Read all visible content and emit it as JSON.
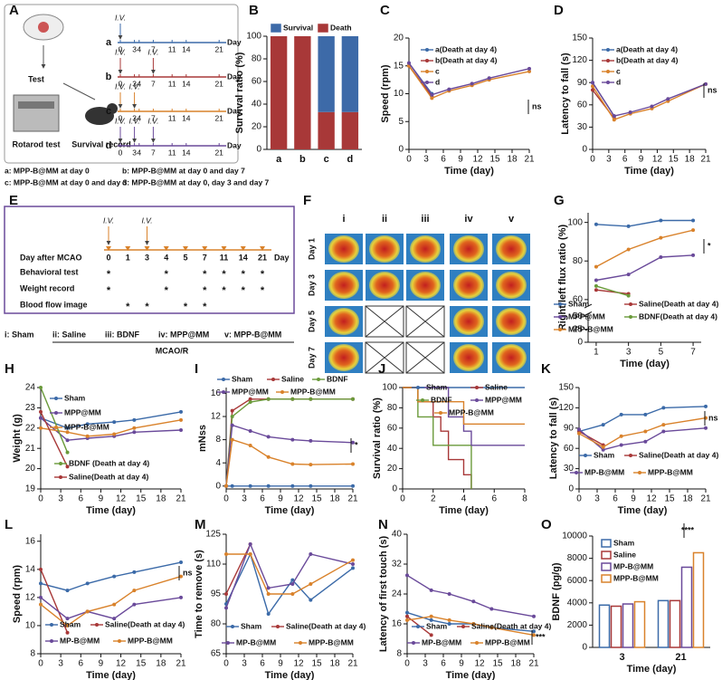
{
  "panel_a": {
    "label": "A",
    "test": "Test",
    "rotarod": "Rotarod test",
    "survival": "Survival record",
    "iv": "I.V.",
    "unit": "Day",
    "days": [
      0,
      3,
      4,
      7,
      11,
      14,
      21
    ],
    "groups": [
      {
        "letter": "a",
        "color": "#3b6aa8",
        "doses": [
          0
        ],
        "legend": "a: MPP-B@MM at day 0"
      },
      {
        "letter": "b",
        "color": "#a83838",
        "doses": [
          0,
          7
        ],
        "legend": "b: MPP-B@MM at day 0 and day 7"
      },
      {
        "letter": "c",
        "color": "#d9822b",
        "doses": [
          0,
          3
        ],
        "legend": "c: MPP-B@MM at day 0 and day 3"
      },
      {
        "letter": "d",
        "color": "#6a4a9a",
        "doses": [
          0,
          3,
          7
        ],
        "legend": "d: MPP-B@MM at day 0, day 3 and day 7"
      }
    ]
  },
  "panel_e": {
    "label": "E",
    "iv": "I.V.",
    "doses": [
      0,
      3
    ],
    "days": [
      0,
      1,
      3,
      4,
      5,
      7,
      11,
      14,
      21
    ],
    "unit": "Day",
    "row_title": "Day after MCAO",
    "mark": "*",
    "rows": [
      {
        "name": "Behavioral test",
        "days": [
          0,
          4,
          7,
          11,
          14,
          21
        ]
      },
      {
        "name": "Weight record",
        "days": [
          0,
          4,
          7,
          11,
          14,
          21
        ]
      },
      {
        "name": "Blood flow image",
        "days": [
          1,
          3,
          5,
          7
        ]
      }
    ],
    "groups": [
      "i: Sham",
      "ii: Saline",
      "iii: BDNF",
      "iv: MPP@MM",
      "v: MPP-B@MM"
    ],
    "model": "MCAO/R"
  },
  "panel_f": {
    "label": "F",
    "columns": [
      "i",
      "ii",
      "iii",
      "iv",
      "v"
    ],
    "rows": [
      "Day 1",
      "Day 3",
      "Day 5",
      "Day 7"
    ]
  },
  "chart_data": [
    {
      "panel": "B",
      "type": "stacked_bar",
      "categories": [
        "a",
        "b",
        "c",
        "d"
      ],
      "ylim": [
        0,
        100
      ],
      "yticks": [
        0,
        20,
        40,
        60,
        80,
        100
      ],
      "ylabel": "Survival ratio (%)",
      "series": [
        {
          "name": "Survival",
          "color": "#3d6aa8",
          "values": [
            0,
            0,
            67,
            67
          ]
        },
        {
          "name": "Death",
          "color": "#a83838",
          "values": [
            100,
            100,
            33,
            33
          ]
        }
      ]
    },
    {
      "panel": "C",
      "type": "line",
      "x": [
        0,
        4,
        7,
        11,
        14,
        21
      ],
      "xlim": [
        0,
        21
      ],
      "xticks": [
        0,
        3,
        6,
        9,
        12,
        15,
        18,
        21
      ],
      "ylim": [
        0,
        20
      ],
      "yticks": [
        0,
        5,
        10,
        15,
        20
      ],
      "xlabel": "Time (day)",
      "ylabel": "Speed (rpm)",
      "annotations": [
        "ns"
      ],
      "series": [
        {
          "name": "a(Death at day 4)",
          "color": "#3b6aa8",
          "values": [
            15.5,
            10,
            null,
            null,
            null,
            null
          ]
        },
        {
          "name": "b(Death at day 4)",
          "color": "#a83838",
          "values": [
            15,
            9.5,
            null,
            null,
            null,
            null
          ]
        },
        {
          "name": "c",
          "color": "#d9822b",
          "values": [
            15,
            9.2,
            10.5,
            11.5,
            12.5,
            14
          ]
        },
        {
          "name": "d",
          "color": "#6a4a9a",
          "values": [
            15.5,
            9.8,
            10.8,
            11.8,
            12.8,
            14.5
          ]
        }
      ]
    },
    {
      "panel": "D",
      "type": "line",
      "x": [
        0,
        4,
        7,
        11,
        14,
        21
      ],
      "xlim": [
        0,
        21
      ],
      "xticks": [
        0,
        3,
        6,
        9,
        12,
        15,
        18,
        21
      ],
      "ylim": [
        0,
        150
      ],
      "yticks": [
        0,
        30,
        60,
        90,
        120,
        150
      ],
      "xlabel": "Time (day)",
      "ylabel": "Latency to fall (s)",
      "annotations": [
        "ns"
      ],
      "series": [
        {
          "name": "a(Death at day 4)",
          "color": "#3b6aa8",
          "values": [
            90,
            45,
            null,
            null,
            null,
            null
          ]
        },
        {
          "name": "b(Death at day 4)",
          "color": "#a83838",
          "values": [
            80,
            42,
            null,
            null,
            null,
            null
          ]
        },
        {
          "name": "c",
          "color": "#d9822b",
          "values": [
            85,
            40,
            48,
            55,
            65,
            88
          ]
        },
        {
          "name": "d",
          "color": "#6a4a9a",
          "values": [
            90,
            45,
            50,
            58,
            68,
            88
          ]
        }
      ]
    },
    {
      "panel": "G",
      "type": "line",
      "x": [
        1,
        3,
        5,
        7
      ],
      "xlim": [
        0.5,
        7.5
      ],
      "xticks": [
        1,
        3,
        5,
        7
      ],
      "ylim": [
        0,
        105
      ],
      "ybreak": [
        50,
        58
      ],
      "yticks": [
        0,
        25,
        50,
        60,
        80,
        100
      ],
      "xlabel": "Time (day)",
      "ylabel": "Right/left flux ratio (%)",
      "annotations": [
        "*"
      ],
      "series": [
        {
          "name": "Sham",
          "color": "#3b6aa8",
          "values": [
            99,
            98,
            101,
            101
          ]
        },
        {
          "name": "Saline(Death at day 4)",
          "color": "#a83838",
          "values": [
            65,
            63,
            null,
            null
          ]
        },
        {
          "name": "MPP@MM",
          "color": "#6a4a9a",
          "values": [
            70,
            73,
            82,
            83
          ]
        },
        {
          "name": "BDNF(Death at day 4)",
          "color": "#6a9a3a",
          "values": [
            67,
            62,
            null,
            null
          ]
        },
        {
          "name": "MPP-B@MM",
          "color": "#d9822b",
          "values": [
            77,
            86,
            92,
            96
          ]
        }
      ]
    },
    {
      "panel": "H",
      "type": "line",
      "x": [
        0,
        4,
        7,
        11,
        14,
        21
      ],
      "xlim": [
        0,
        21
      ],
      "xticks": [
        0,
        3,
        6,
        9,
        12,
        15,
        18,
        21
      ],
      "ylim": [
        19,
        24
      ],
      "yticks": [
        19,
        20,
        21,
        22,
        23,
        24
      ],
      "xlabel": "Time (day)",
      "ylabel": "Weight (g)",
      "series": [
        {
          "name": "Sham",
          "color": "#3b6aa8",
          "values": [
            22.5,
            22.0,
            22.2,
            22.3,
            22.4,
            22.8
          ]
        },
        {
          "name": "MPP@MM",
          "color": "#6a4a9a",
          "values": [
            22.5,
            21.4,
            21.5,
            21.6,
            21.8,
            21.9
          ]
        },
        {
          "name": "MPP-B@MM",
          "color": "#d9822b",
          "values": [
            22,
            21.8,
            21.6,
            21.7,
            22,
            22.4
          ]
        },
        {
          "name": "BDNF (Death at day 4)",
          "color": "#6a9a3a",
          "values": [
            24,
            20.8,
            null,
            null,
            null,
            null
          ]
        },
        {
          "name": "Saline(Death at day 4)",
          "color": "#a83838",
          "values": [
            22.8,
            20.1,
            null,
            null,
            null,
            null
          ]
        }
      ]
    },
    {
      "panel": "I",
      "type": "line",
      "x": [
        0,
        1,
        4,
        7,
        11,
        14,
        21
      ],
      "xlim": [
        0,
        21
      ],
      "xticks": [
        0,
        3,
        6,
        9,
        12,
        15,
        18,
        21
      ],
      "ylim": [
        -0.5,
        17
      ],
      "yticks": [
        0,
        4,
        8,
        12,
        16
      ],
      "xlabel": "Time (day)",
      "ylabel": "mNss",
      "annotations": [
        "*"
      ],
      "series": [
        {
          "name": "Sham",
          "color": "#3b6aa8",
          "values": [
            0,
            0,
            0,
            0,
            0,
            0,
            0
          ]
        },
        {
          "name": "Saline",
          "color": "#a83838",
          "values": [
            0,
            13,
            15,
            15,
            15,
            15,
            15
          ]
        },
        {
          "name": "BDNF",
          "color": "#6a9a3a",
          "values": [
            0,
            12,
            14.5,
            15,
            15,
            15,
            15
          ]
        },
        {
          "name": "MPP@MM",
          "color": "#6a4a9a",
          "values": [
            0,
            10.5,
            9.5,
            8.5,
            8,
            7.8,
            7.5
          ]
        },
        {
          "name": "MPP-B@MM",
          "color": "#d9822b",
          "values": [
            0,
            8,
            7,
            5,
            3.8,
            3.7,
            3.8
          ]
        }
      ]
    },
    {
      "panel": "J",
      "type": "step",
      "xlim": [
        0,
        8
      ],
      "xticks": [
        0,
        2,
        4,
        6,
        8
      ],
      "ylim": [
        0,
        100
      ],
      "yticks": [
        0,
        20,
        40,
        60,
        80,
        100
      ],
      "xlabel": "Time (day)",
      "ylabel": "Survival ratio (%)",
      "series": [
        {
          "name": "Sham",
          "color": "#3b6aa8",
          "x": [
            0,
            8
          ],
          "values": [
            100,
            100
          ]
        },
        {
          "name": "Saline",
          "color": "#a83838",
          "x": [
            0,
            1,
            2,
            2.5,
            3,
            4,
            4.5
          ],
          "values": [
            100,
            86,
            71,
            57,
            29,
            14,
            0
          ]
        },
        {
          "name": "BDNF",
          "color": "#6a9a3a",
          "x": [
            0,
            1,
            2,
            4.5
          ],
          "values": [
            100,
            71,
            43,
            0
          ]
        },
        {
          "name": "MPP@MM",
          "color": "#6a4a9a",
          "x": [
            0,
            3,
            4,
            4.5,
            8
          ],
          "values": [
            100,
            71,
            57,
            43,
            43
          ]
        },
        {
          "name": "MPP-B@MM",
          "color": "#d9822b",
          "x": [
            0,
            1,
            4,
            8
          ],
          "values": [
            100,
            86,
            64,
            64
          ]
        }
      ]
    },
    {
      "panel": "K",
      "type": "line",
      "x": [
        0,
        4,
        7,
        11,
        14,
        21
      ],
      "xlim": [
        0,
        21
      ],
      "xticks": [
        0,
        3,
        6,
        9,
        12,
        15,
        18,
        21
      ],
      "ylim": [
        0,
        150
      ],
      "yticks": [
        0,
        30,
        60,
        90,
        120,
        150
      ],
      "xlabel": "Time (day)",
      "ylabel": "Latency to fall (s)",
      "annotations": [
        "ns"
      ],
      "series": [
        {
          "name": "Sham",
          "color": "#3b6aa8",
          "values": [
            85,
            95,
            110,
            110,
            120,
            122
          ]
        },
        {
          "name": "Saline(Death at day 4)",
          "color": "#a83838",
          "values": [
            85,
            65,
            null,
            null,
            null,
            null
          ]
        },
        {
          "name": "MP-B@MM",
          "color": "#6a4a9a",
          "values": [
            88,
            58,
            65,
            70,
            85,
            90
          ]
        },
        {
          "name": "MPP-B@MM",
          "color": "#d9822b",
          "values": [
            82,
            62,
            78,
            85,
            95,
            105
          ]
        }
      ]
    },
    {
      "panel": "L",
      "type": "line",
      "x": [
        0,
        4,
        7,
        11,
        14,
        21
      ],
      "xlim": [
        0,
        21
      ],
      "xticks": [
        0,
        3,
        6,
        9,
        12,
        15,
        18,
        21
      ],
      "ylim": [
        8,
        16.5
      ],
      "yticks": [
        8,
        10,
        12,
        14,
        16
      ],
      "xlabel": "Time (day)",
      "ylabel": "Speed (rpm)",
      "annotations": [
        "ns"
      ],
      "series": [
        {
          "name": "Sham",
          "color": "#3b6aa8",
          "values": [
            13,
            12.5,
            13,
            13.5,
            13.8,
            14.5
          ]
        },
        {
          "name": "Saline(Death at day 4)",
          "color": "#a83838",
          "values": [
            14,
            9.5,
            null,
            null,
            null,
            null
          ]
        },
        {
          "name": "MP-B@MM",
          "color": "#6a4a9a",
          "values": [
            12,
            10.5,
            11,
            10.5,
            11.5,
            12
          ]
        },
        {
          "name": "MPP-B@MM",
          "color": "#d9822b",
          "values": [
            11.5,
            10,
            11,
            11.5,
            12.5,
            13.5
          ]
        }
      ]
    },
    {
      "panel": "M",
      "type": "line",
      "x": [
        0,
        4,
        7,
        11,
        14,
        21
      ],
      "xlim": [
        0,
        21
      ],
      "xticks": [
        0,
        3,
        6,
        9,
        12,
        15,
        18,
        21
      ],
      "ylim": [
        65,
        125
      ],
      "yticks": [
        65,
        80,
        95,
        110,
        125
      ],
      "xlabel": "Time (day)",
      "ylabel": "Time to remove (s)",
      "series": [
        {
          "name": "Sham",
          "color": "#3b6aa8",
          "values": [
            90,
            115,
            85,
            102,
            92,
            108
          ]
        },
        {
          "name": "Saline(Death at day 4)",
          "color": "#a83838",
          "values": [
            95,
            120,
            null,
            null,
            null,
            null
          ]
        },
        {
          "name": "MP-B@MM",
          "color": "#6a4a9a",
          "values": [
            88,
            120,
            98,
            100,
            115,
            110
          ]
        },
        {
          "name": "MPP-B@MM",
          "color": "#d9822b",
          "values": [
            115,
            115,
            95,
            95,
            100,
            112
          ]
        }
      ]
    },
    {
      "panel": "N",
      "type": "line",
      "x": [
        0,
        4,
        7,
        11,
        14,
        21
      ],
      "xlim": [
        0,
        21
      ],
      "xticks": [
        0,
        3,
        6,
        9,
        12,
        15,
        18,
        21
      ],
      "ylim": [
        8,
        40
      ],
      "yticks": [
        8,
        16,
        24,
        32,
        40
      ],
      "xlabel": "Time (day)",
      "ylabel": "Latency of first touch (s)",
      "annotations": [
        "***"
      ],
      "series": [
        {
          "name": "Sham",
          "color": "#3b6aa8",
          "values": [
            19,
            17,
            16,
            16,
            15,
            14
          ]
        },
        {
          "name": "Saline(Death at day 4)",
          "color": "#a83838",
          "values": [
            18,
            13,
            null,
            null,
            null,
            null
          ]
        },
        {
          "name": "MP-B@MM",
          "color": "#6a4a9a",
          "values": [
            29,
            25,
            24,
            22,
            20,
            18
          ]
        },
        {
          "name": "MPP-B@MM",
          "color": "#d9822b",
          "values": [
            17,
            18,
            17,
            16,
            15,
            13
          ]
        }
      ]
    },
    {
      "panel": "O",
      "type": "grouped_bar",
      "categories": [
        "3",
        "21"
      ],
      "ylim": [
        0,
        10000
      ],
      "yticks": [
        0,
        2000,
        4000,
        6000,
        8000,
        10000
      ],
      "xlabel": "Time (day)",
      "ylabel": "BDNF (pg/g)",
      "annotations": [
        "****"
      ],
      "series": [
        {
          "name": "Sham",
          "color": "#3b6aa8",
          "values": [
            3800,
            4200
          ]
        },
        {
          "name": "Saline",
          "color": "#a83838",
          "values": [
            3700,
            4200
          ]
        },
        {
          "name": "MP-B@MM",
          "color": "#6a4a9a",
          "values": [
            3900,
            7200
          ]
        },
        {
          "name": "MPP-B@MM",
          "color": "#d9822b",
          "values": [
            4100,
            8500
          ]
        }
      ]
    }
  ]
}
